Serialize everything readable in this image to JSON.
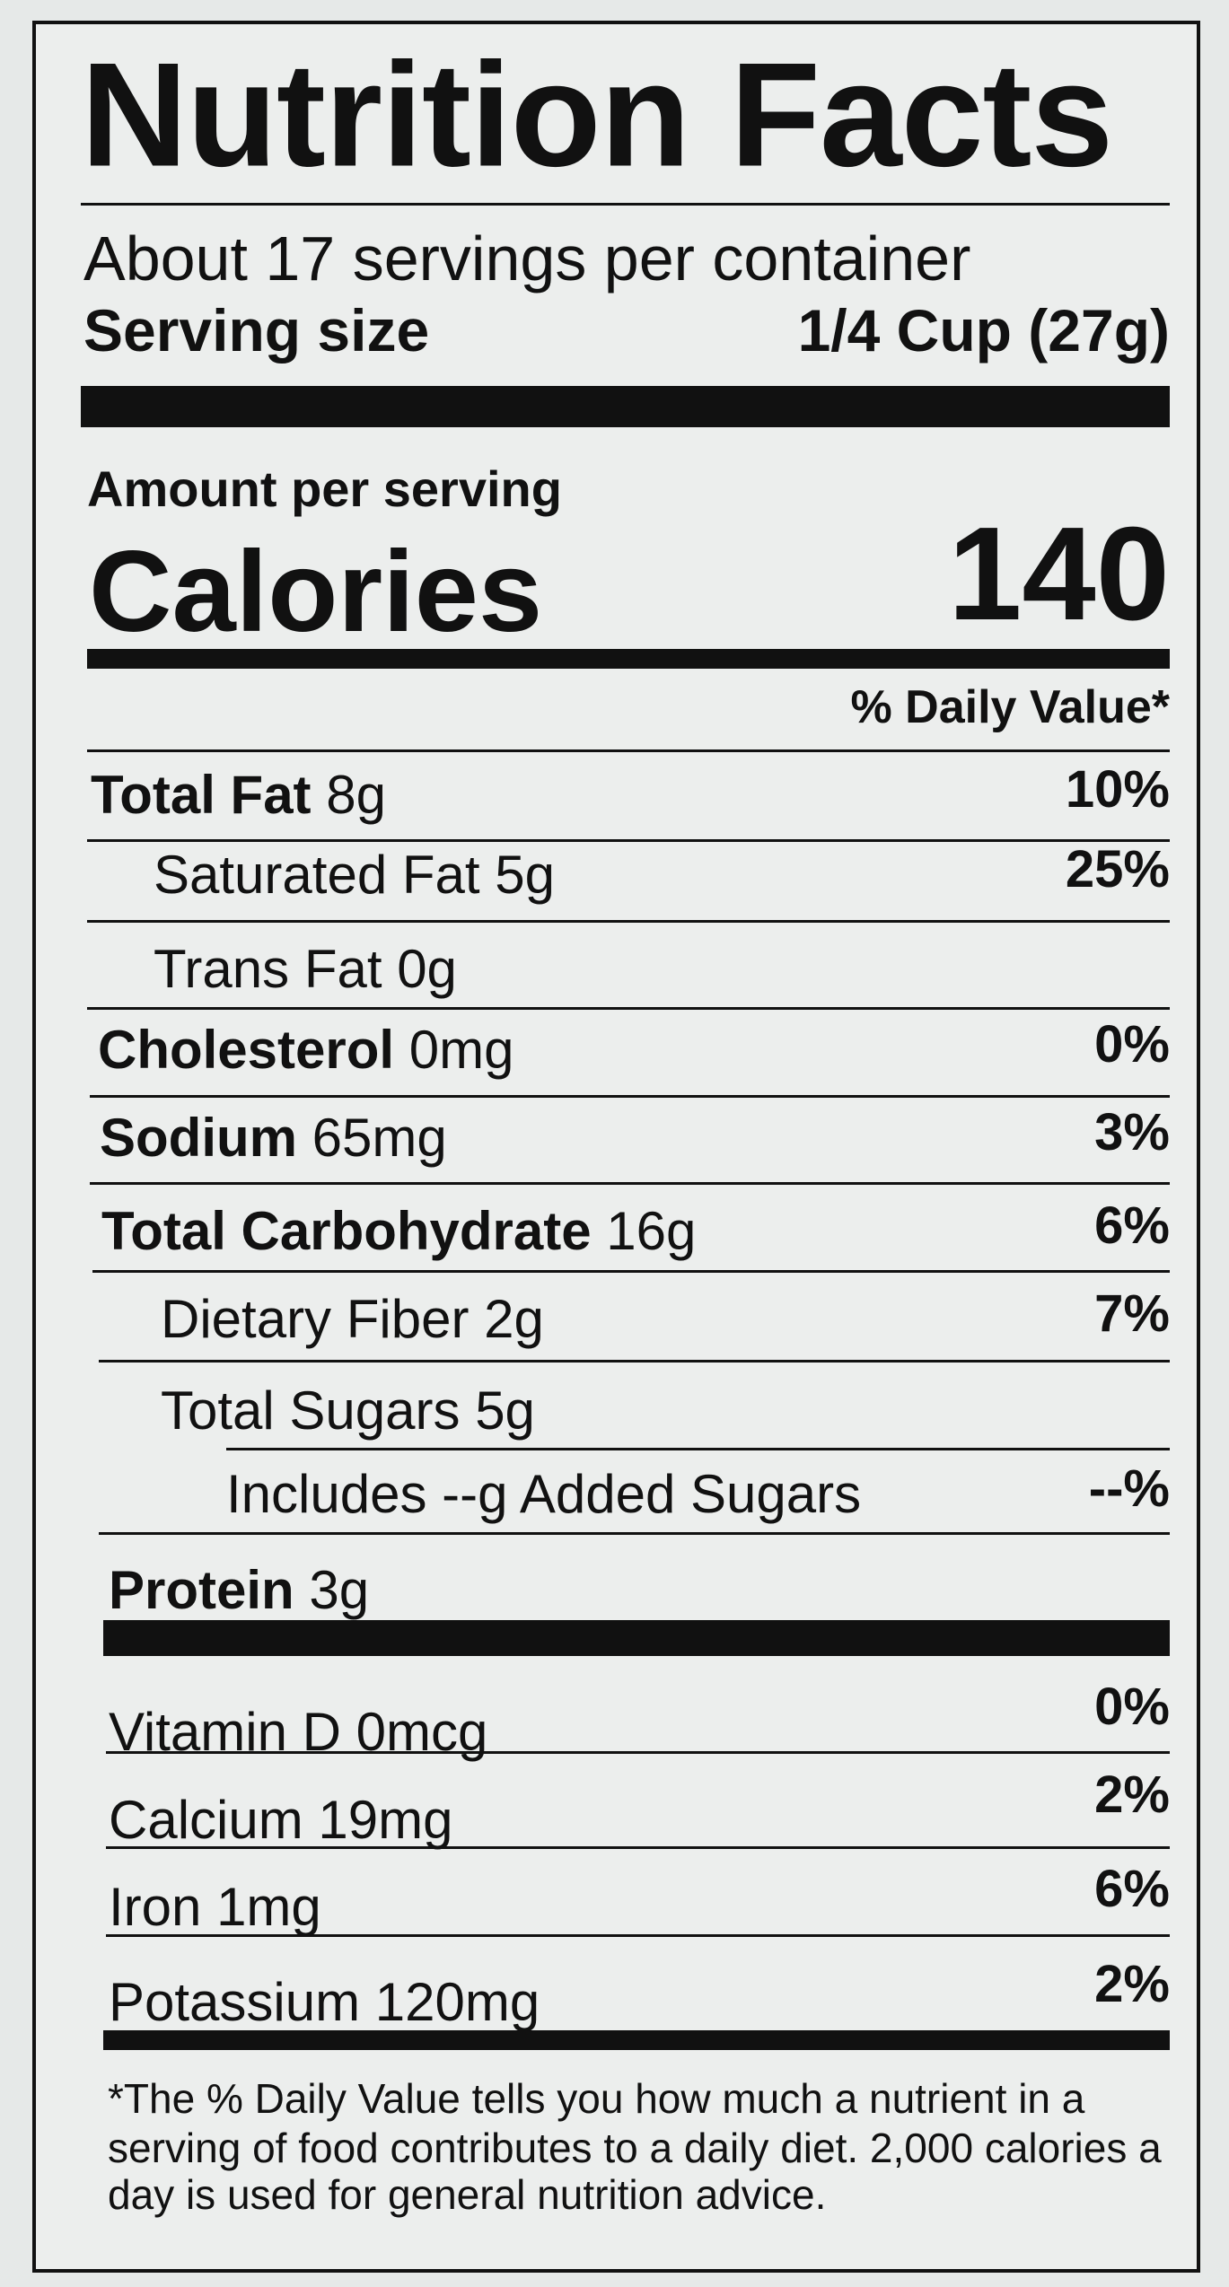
{
  "header": {
    "title": "Nutrition Facts",
    "servings": "About 17 servings per container",
    "serving_size_label": "Serving size",
    "serving_size_value": "1/4 Cup (27g)"
  },
  "calories": {
    "amount_per_serving": "Amount per serving",
    "label": "Calories",
    "value": "140"
  },
  "daily_value_header": "% Daily Value*",
  "nutrients": [
    {
      "name": "Total Fat",
      "amount": "8g",
      "dv": "10%"
    },
    {
      "name": "Saturated Fat",
      "amount": "5g",
      "dv": "25%"
    },
    {
      "name": "Trans Fat",
      "amount": "0g"
    },
    {
      "name": "Cholesterol",
      "amount": "0mg",
      "dv": "0%"
    },
    {
      "name": "Sodium",
      "amount": "65mg",
      "dv": "3%"
    },
    {
      "name": "Total Carbohydrate",
      "amount": "16g",
      "dv": "6%"
    },
    {
      "name": "Dietary Fiber",
      "amount": "2g",
      "dv": "7%"
    },
    {
      "name": "Total Sugars",
      "amount": "5g"
    },
    {
      "name": "Includes --g Added Sugars",
      "dv": "--%"
    },
    {
      "name": "Protein",
      "amount": "3g"
    }
  ],
  "vitamins": [
    {
      "name": "Vitamin D",
      "amount": "0mcg",
      "dv": "0%"
    },
    {
      "name": "Calcium",
      "amount": "19mg",
      "dv": "2%"
    },
    {
      "name": "Iron",
      "amount": "1mg",
      "dv": "6%"
    },
    {
      "name": "Potassium",
      "amount": "120mg",
      "dv": "2%"
    }
  ],
  "footnote": [
    "*The % Daily Value tells you how much a nutrient in a",
    "serving of food contributes to a daily diet. 2,000 calories a",
    "day is used for general nutrition advice."
  ]
}
